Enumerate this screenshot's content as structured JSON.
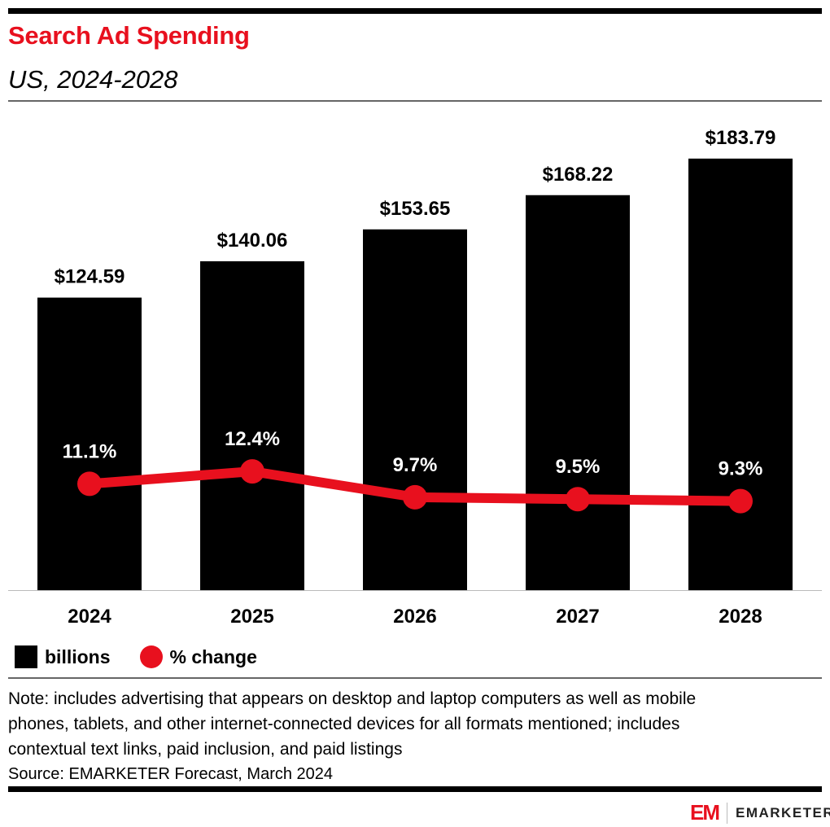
{
  "header": {
    "title": "Search Ad Spending",
    "subtitle": "US, 2024-2028"
  },
  "chart_data": {
    "type": "bar+line",
    "categories": [
      "2024",
      "2025",
      "2026",
      "2027",
      "2028"
    ],
    "series": [
      {
        "name": "billions",
        "type": "bar",
        "color": "#000000",
        "values": [
          124.59,
          140.06,
          153.65,
          168.22,
          183.79
        ],
        "labels": [
          "$124.59",
          "$140.06",
          "$153.65",
          "$168.22",
          "$183.79"
        ]
      },
      {
        "name": "% change",
        "type": "line",
        "color": "#e8101e",
        "values": [
          11.1,
          12.4,
          9.7,
          9.5,
          9.3
        ],
        "labels": [
          "11.1%",
          "12.4%",
          "9.7%",
          "9.5%",
          "9.3%"
        ]
      }
    ],
    "ylim_bars": [
      0,
      208
    ],
    "ylim_line": [
      0,
      51
    ],
    "grid": false,
    "legend": "bottom-left"
  },
  "legend": {
    "bars": "billions",
    "line": "% change"
  },
  "footer": {
    "note_lines": [
      "Note: includes advertising that appears on desktop and laptop computers as well as mobile",
      "phones, tablets, and other internet-connected devices for all formats mentioned; includes",
      "contextual text links, paid inclusion, and paid listings"
    ],
    "source": "Source: EMARKETER Forecast, March 2024",
    "logo_mark": "EM",
    "logo_text": "EMARKETER"
  },
  "colors": {
    "accent": "#e8101e",
    "bar": "#000000"
  }
}
